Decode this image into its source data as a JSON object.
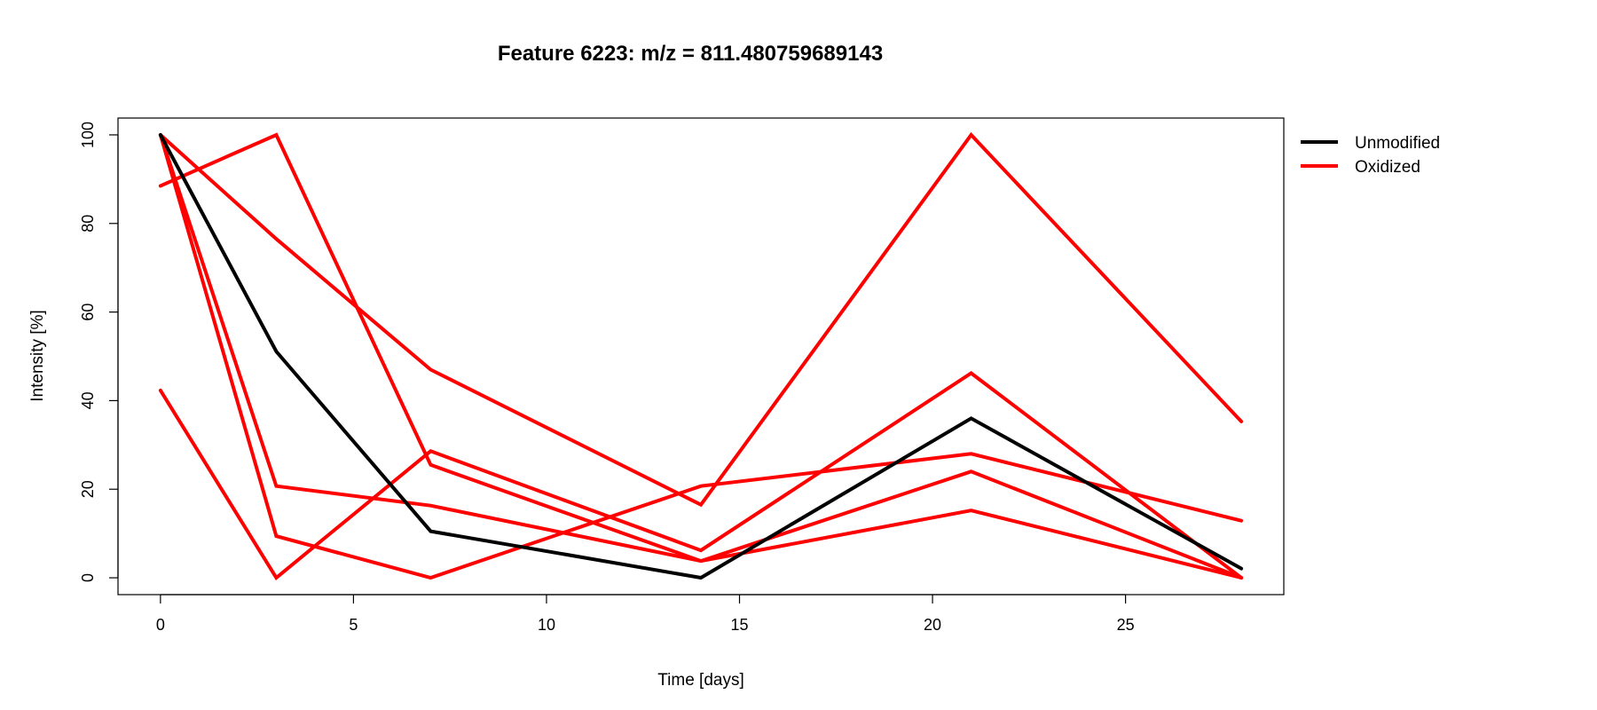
{
  "chart_data": {
    "type": "line",
    "title": "Feature 6223: m/z = 811.480759689143",
    "xlabel": "Time [days]",
    "ylabel": "Intensity [%]",
    "xlim": [
      -1.1,
      29.1
    ],
    "ylim": [
      -3.8,
      103.8
    ],
    "x_ticks": [
      0,
      5,
      10,
      15,
      20,
      25
    ],
    "y_ticks": [
      0,
      20,
      40,
      60,
      80,
      100
    ],
    "grid": false,
    "legend_position": "right, outside plot area, top",
    "legend": [
      {
        "label": "Unmodified",
        "color": "#000000"
      },
      {
        "label": "Oxidized",
        "color": "#ff0000"
      }
    ],
    "x": [
      0,
      3,
      7,
      14,
      21,
      28
    ],
    "series": [
      {
        "group": "Oxidized",
        "color": "#ff0000",
        "values": [
          100,
          76.5,
          47,
          16.5,
          100,
          35.3
        ]
      },
      {
        "group": "Oxidized",
        "color": "#ff0000",
        "values": [
          88.5,
          100,
          25.5,
          3.8,
          24,
          0
        ]
      },
      {
        "group": "Oxidized",
        "color": "#ff0000",
        "values": [
          100,
          20.7,
          16.3,
          3.8,
          15.2,
          0
        ]
      },
      {
        "group": "Oxidized",
        "color": "#ff0000",
        "values": [
          100,
          9.4,
          0,
          20.7,
          28,
          12.9
        ]
      },
      {
        "group": "Oxidized",
        "color": "#ff0000",
        "values": [
          42.3,
          0,
          28.6,
          6.2,
          46.2,
          0
        ]
      },
      {
        "group": "Unmodified",
        "color": "#000000",
        "values": [
          100,
          51.1,
          10.5,
          0,
          36,
          2.1
        ]
      }
    ]
  }
}
